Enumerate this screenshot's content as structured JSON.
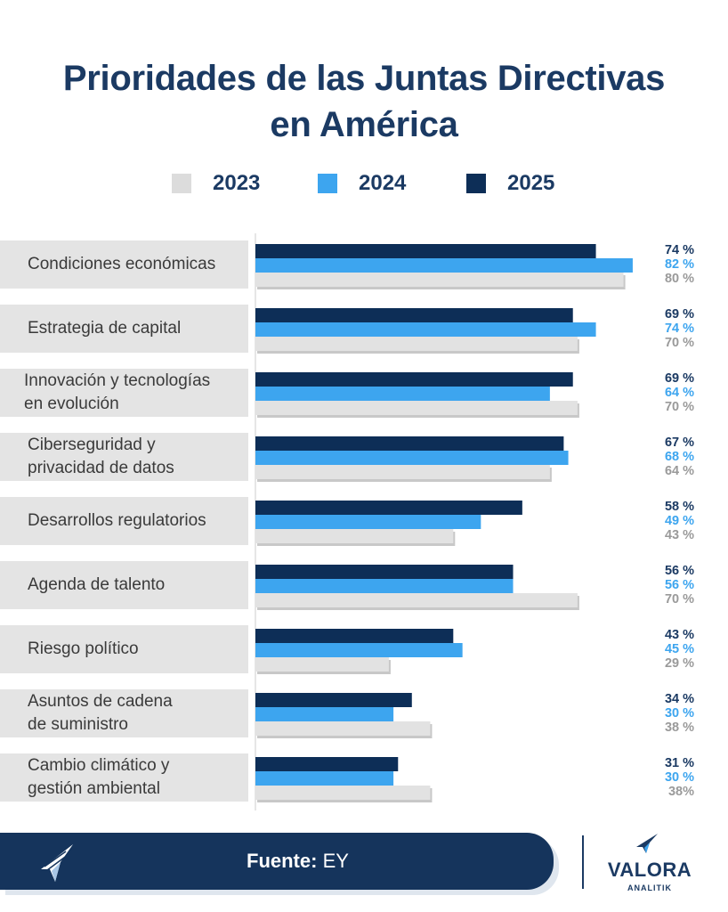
{
  "chart_data": {
    "type": "bar",
    "orientation": "horizontal",
    "title": "Prioridades de las Juntas Directivas\nen América",
    "categories": [
      "Condiciones económicas",
      "Estrategia de capital",
      "Innovación y tecnologías\nen evolución",
      "Ciberseguridad y\nprivacidad de datos",
      "Desarrollos regulatorios",
      "Agenda de talento",
      "Riesgo político",
      "Asuntos de cadena\nde suministro",
      "Cambio climático y\ngestión ambiental"
    ],
    "series": [
      {
        "name": "2025",
        "color": "#0d2e57",
        "values": [
          74,
          69,
          69,
          67,
          58,
          56,
          43,
          34,
          31
        ],
        "labels": [
          "74 %",
          "69 %",
          "69 %",
          "67 %",
          "58 %",
          "56 %",
          "43 %",
          "34 %",
          "31 %"
        ]
      },
      {
        "name": "2024",
        "color": "#3da5ef",
        "values": [
          82,
          74,
          64,
          68,
          49,
          56,
          45,
          30,
          30
        ],
        "labels": [
          "82 %",
          "74 %",
          "64 %",
          "68 %",
          "49 %",
          "56 %",
          "45 %",
          "30 %",
          "30 %"
        ]
      },
      {
        "name": "2023",
        "color": "#e2e2e2",
        "values": [
          80,
          70,
          70,
          64,
          43,
          70,
          29,
          38,
          38
        ],
        "labels": [
          "80 %",
          "70 %",
          "70 %",
          "64 %",
          "43 %",
          "70 %",
          "29 %",
          "38 %",
          "38%"
        ]
      }
    ],
    "legend": [
      {
        "name": "2023",
        "color": "#dcdcdc"
      },
      {
        "name": "2024",
        "color": "#3da5ef"
      },
      {
        "name": "2025",
        "color": "#0d2e57"
      }
    ],
    "label_colors": {
      "2025": "#1b3a63",
      "2024": "#3da5ef",
      "2023": "#9a9a9a"
    },
    "xlim": [
      0,
      100
    ]
  },
  "footer": {
    "source_label": "Fuente:",
    "source_value": "EY"
  },
  "brand": {
    "name": "VALORA",
    "sub": "ANALITIK",
    "color": "#1b3a63"
  }
}
